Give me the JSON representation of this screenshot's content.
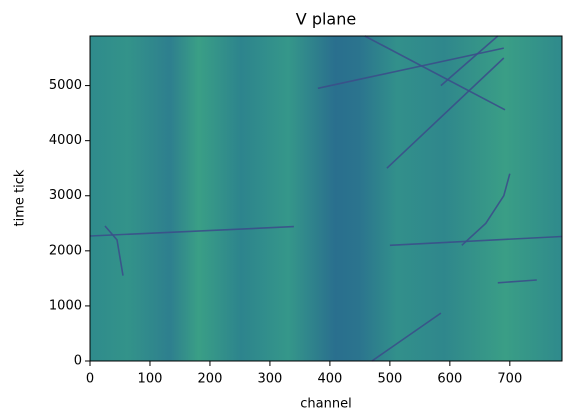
{
  "chart_data": {
    "type": "image",
    "title": "V plane",
    "x_label": "channel",
    "y_label": "time tick",
    "xlim": [
      0,
      787
    ],
    "ylim": [
      0,
      5900
    ],
    "xticks": [
      0,
      100,
      200,
      300,
      400,
      500,
      600,
      700
    ],
    "yticks": [
      0,
      1000,
      2000,
      3000,
      4000,
      5000
    ],
    "color": "#3b4f8a",
    "series": [
      {
        "x": [
          0,
          340
        ],
        "values": [
          2270,
          2440
        ]
      },
      {
        "x": [
          500,
          787
        ],
        "values": [
          2100,
          2260
        ]
      },
      {
        "x": [
          380,
          690
        ],
        "values": [
          4950,
          5680
        ]
      },
      {
        "x": [
          495,
          690
        ],
        "values": [
          3500,
          5500
        ]
      },
      {
        "x": [
          458,
          692
        ],
        "values": [
          5900,
          4560
        ]
      },
      {
        "x": [
          585,
          680
        ],
        "values": [
          5000,
          5900
        ]
      },
      {
        "x": [
          620,
          660,
          690,
          700
        ],
        "values": [
          2100,
          2500,
          3000,
          3400
        ]
      },
      {
        "x": [
          470,
          585
        ],
        "values": [
          0,
          870
        ]
      },
      {
        "x": [
          25,
          45,
          55
        ],
        "values": [
          2450,
          2200,
          1550
        ]
      },
      {
        "x": [
          680,
          745
        ],
        "values": [
          1420,
          1470
        ]
      }
    ]
  }
}
